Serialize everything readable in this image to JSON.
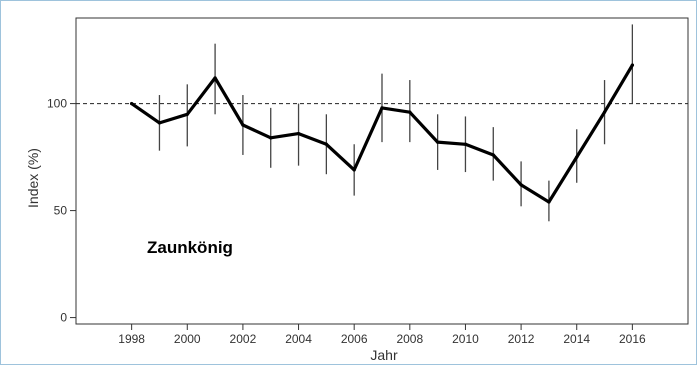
{
  "chart_data": {
    "type": "line",
    "xlabel": "Jahr",
    "ylabel": "Index (%)",
    "annotation": "Zaunkönig",
    "xlim": [
      1996,
      2018
    ],
    "ylim": [
      -3,
      140
    ],
    "x_ticks": [
      1998,
      2000,
      2002,
      2004,
      2006,
      2008,
      2010,
      2012,
      2014,
      2016
    ],
    "y_ticks": [
      0,
      50,
      100
    ],
    "reference_line": 100,
    "grid": false,
    "series": [
      {
        "x": [
          1998,
          1999,
          2000,
          2001,
          2002,
          2003,
          2004,
          2005,
          2006,
          2007,
          2008,
          2009,
          2010,
          2011,
          2012,
          2013,
          2014,
          2015,
          2016
        ],
        "values": [
          100,
          91,
          95,
          112,
          90,
          84,
          86,
          81,
          69,
          98,
          96,
          82,
          81,
          76,
          62,
          54,
          75,
          96,
          118
        ],
        "lower": [
          100,
          78,
          80,
          95,
          76,
          70,
          71,
          67,
          57,
          82,
          82,
          69,
          68,
          64,
          52,
          45,
          63,
          81,
          100
        ],
        "upper": [
          100,
          104,
          109,
          128,
          104,
          98,
          100,
          95,
          81,
          114,
          111,
          95,
          94,
          89,
          73,
          64,
          88,
          111,
          137
        ]
      }
    ]
  }
}
